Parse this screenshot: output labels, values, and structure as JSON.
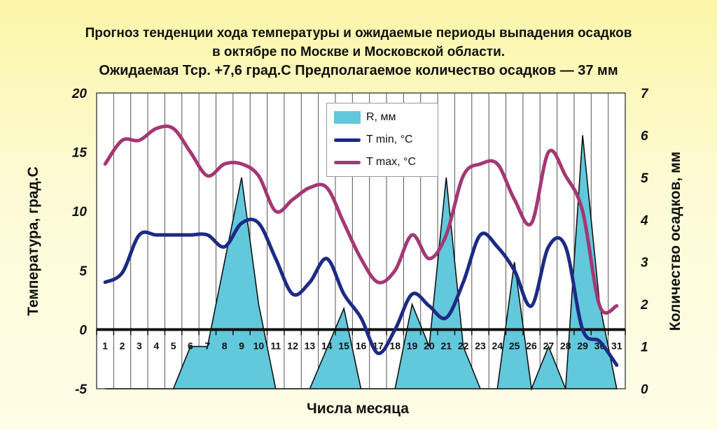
{
  "title": {
    "line1": "Прогноз тенденции хода температуры и ожидаемые периоды выпадения осадков",
    "line2": "в октябре по Москве и Московской области.",
    "line3": "Ожидаемая Тср. +7,6 град.С Предполагаемое количество осадков — 37 мм"
  },
  "chart_data": {
    "type": "line",
    "title": "Прогноз тенденции хода температуры и ожидаемые периоды выпадения осадков в октябре по Москве и Московской области.",
    "subtitle": "Ожидаемая Тср. +7,6 град.С Предполагаемое количество осадков — 37 мм",
    "xlabel": "Числа месяца",
    "ylabel": "Температура, град.С",
    "ylabel_right": "Количество осадков, мм",
    "ylim": [
      -5,
      20
    ],
    "ylim_right": [
      0,
      7
    ],
    "yticks": [
      "20",
      "15",
      "10",
      "5",
      "0",
      "-5"
    ],
    "yticks_right": [
      "7",
      "6",
      "5",
      "4",
      "3",
      "2",
      "1",
      "0"
    ],
    "x": [
      1,
      2,
      3,
      4,
      5,
      6,
      7,
      8,
      9,
      10,
      11,
      12,
      13,
      14,
      15,
      16,
      17,
      18,
      19,
      20,
      21,
      22,
      23,
      24,
      25,
      26,
      27,
      28,
      29,
      30,
      31
    ],
    "series": [
      {
        "name": "R, мм",
        "kind": "area",
        "axis": "right",
        "color": "#62c8dc",
        "x": [
          1,
          5,
          6,
          7,
          8,
          9,
          10,
          11,
          13,
          15,
          16,
          18,
          19,
          20,
          21,
          22,
          23,
          24,
          25,
          26,
          27,
          28,
          29,
          30,
          31
        ],
        "values": [
          0,
          0,
          1,
          1,
          3,
          5,
          2,
          0,
          0,
          1.9,
          0,
          0,
          2,
          1,
          5,
          1,
          0,
          0,
          3,
          0,
          1,
          0,
          6,
          2,
          0
        ]
      },
      {
        "name": "T min, °C",
        "kind": "line",
        "axis": "left",
        "color": "#1d2a84",
        "values": [
          4,
          4.8,
          8,
          8,
          8,
          8,
          8,
          7,
          9,
          9,
          6,
          3,
          4,
          6,
          3,
          1,
          -2,
          0,
          3,
          2,
          1,
          4,
          8,
          7,
          5,
          2,
          7,
          7,
          0,
          -1,
          -3
        ]
      },
      {
        "name": "T max, °C",
        "kind": "line",
        "axis": "left",
        "color": "#a43874",
        "values": [
          14,
          16,
          16,
          17,
          17,
          15,
          13,
          14,
          14,
          13,
          10,
          11,
          12,
          12,
          9,
          6,
          4,
          5,
          8,
          6,
          8,
          13,
          14,
          14,
          11,
          9,
          15,
          13,
          10,
          2,
          2
        ]
      }
    ],
    "legend": "top-center",
    "grid": true
  }
}
